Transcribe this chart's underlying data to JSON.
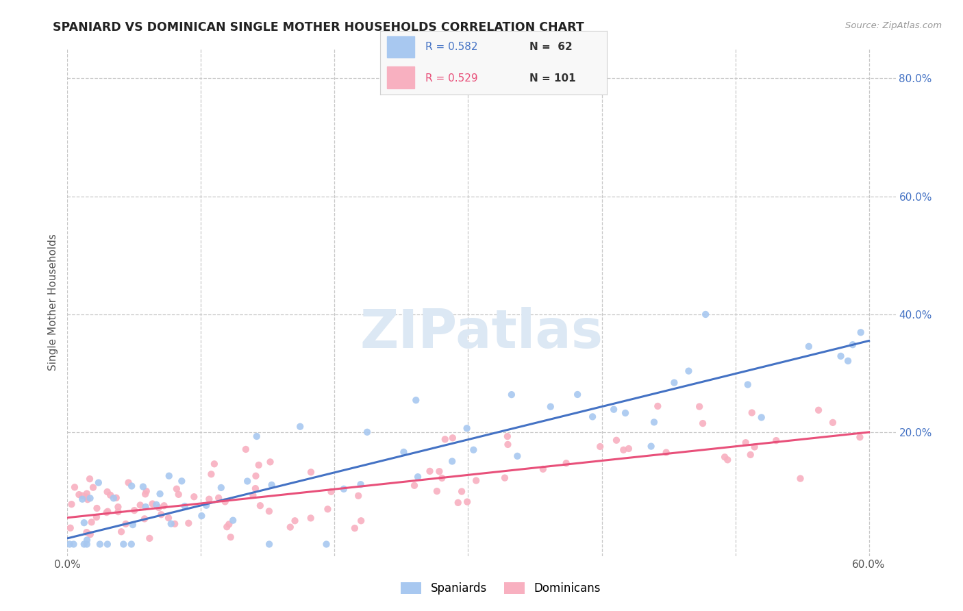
{
  "title": "SPANIARD VS DOMINICAN SINGLE MOTHER HOUSEHOLDS CORRELATION CHART",
  "source_text": "Source: ZipAtlas.com",
  "ylabel": "Single Mother Households",
  "xlim": [
    0.0,
    0.62
  ],
  "ylim": [
    -0.01,
    0.85
  ],
  "background_color": "#ffffff",
  "grid_color": "#c8c8c8",
  "spaniard_color": "#a8c8f0",
  "dominican_color": "#f8b0c0",
  "spaniard_line_color": "#4472c4",
  "dominican_line_color": "#e8507a",
  "watermark_color": "#dce8f4",
  "legend_box_color": "#f8f8f8",
  "legend_box_edge": "#d0d0d0",
  "ytick_positions": [
    0.2,
    0.4,
    0.6,
    0.8
  ],
  "ytick_labels": [
    "20.0%",
    "40.0%",
    "60.0%",
    "80.0%"
  ],
  "xtick_positions": [
    0.0,
    0.6
  ],
  "xtick_labels": [
    "0.0%",
    "60.0%"
  ],
  "sp_trend_start_y": 0.02,
  "sp_trend_end_y": 0.355,
  "dom_trend_start_y": 0.055,
  "dom_trend_end_y": 0.2
}
